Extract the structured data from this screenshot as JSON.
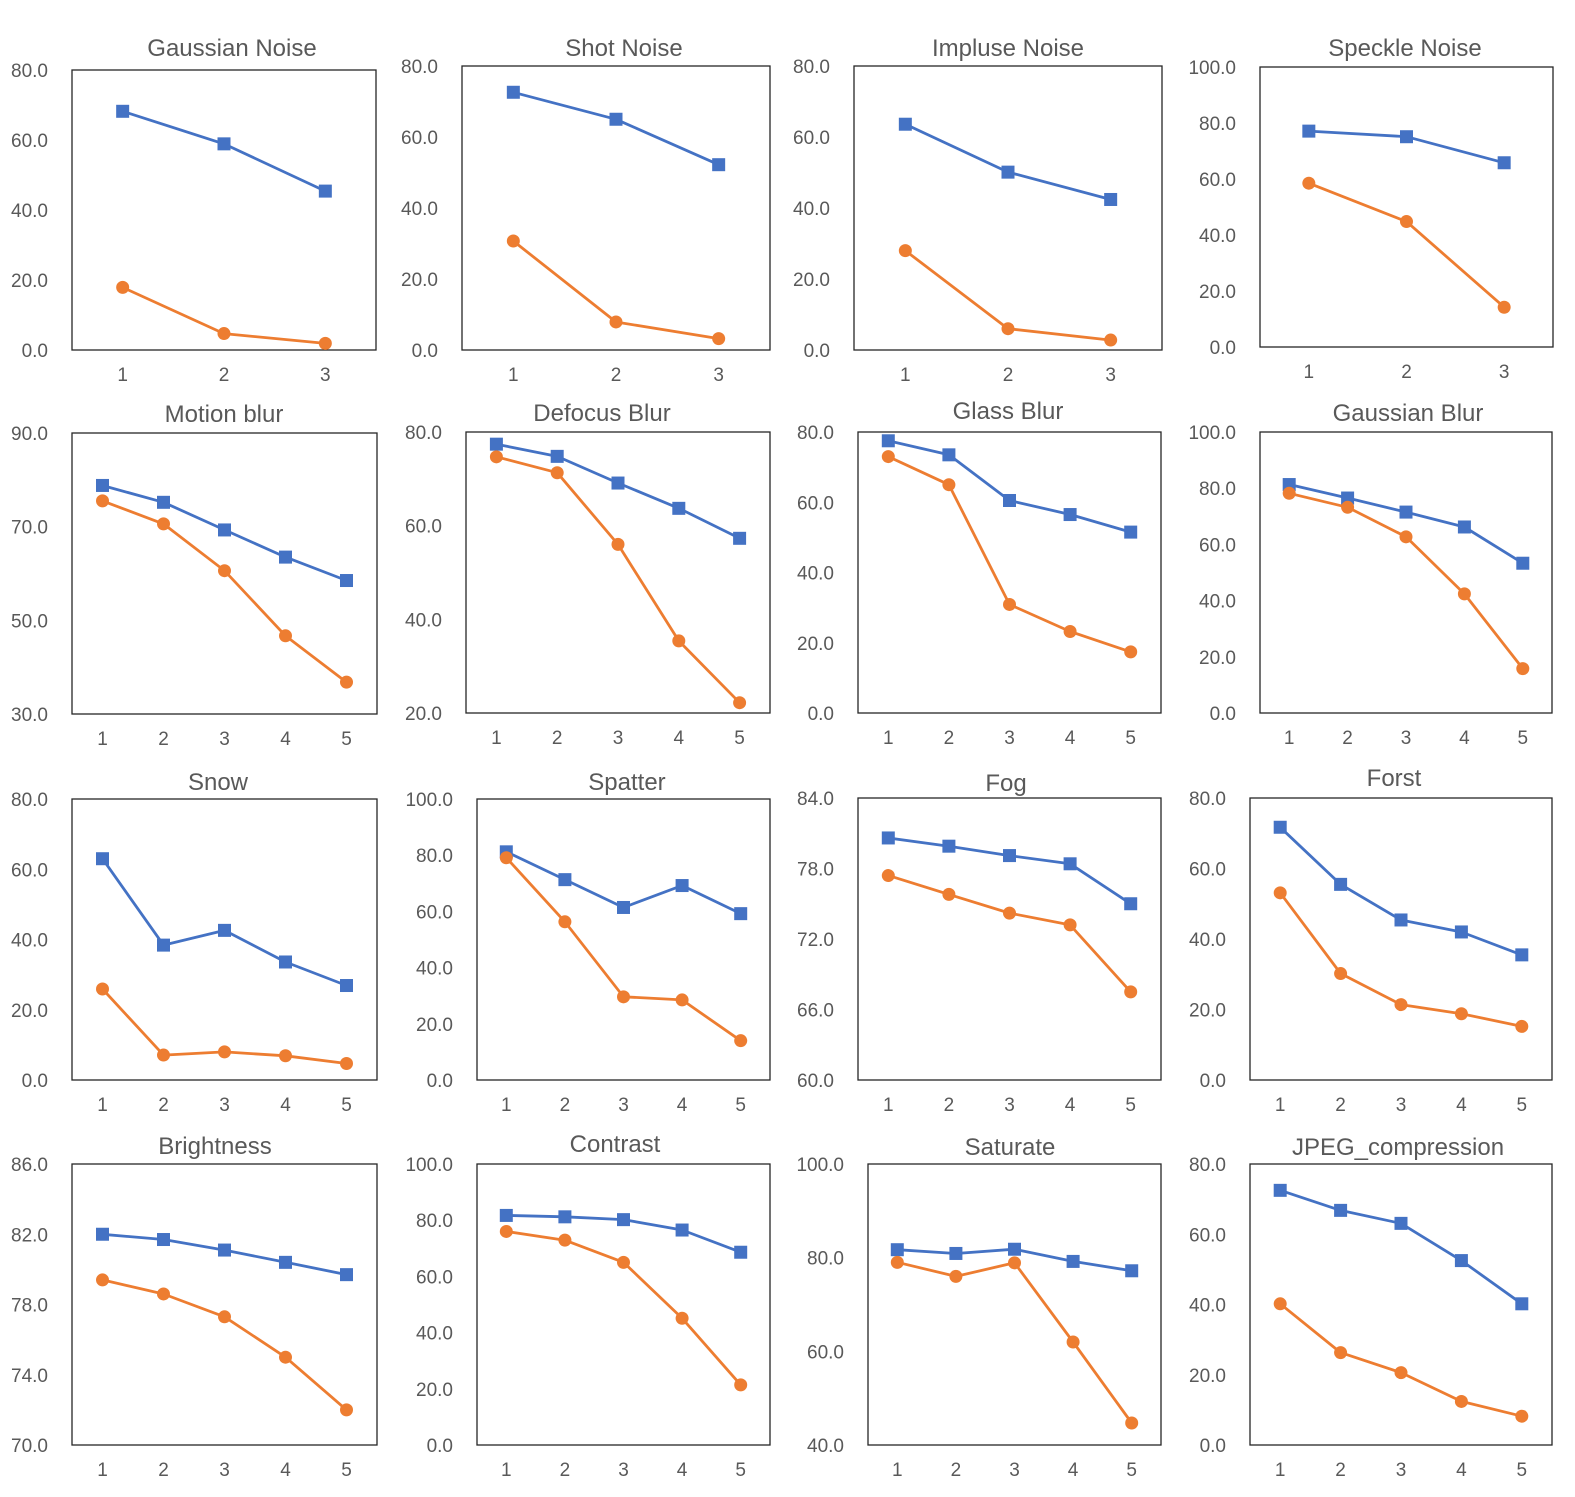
{
  "colors": {
    "blue_series": "#4472C4",
    "orange_series": "#ED7D31"
  },
  "chart_data": [
    {
      "type": "line",
      "title": "Gaussian Noise",
      "x": [
        1,
        2,
        3
      ],
      "ylim": [
        0,
        80
      ],
      "yticks": [
        "0.0",
        "20.0",
        "40.0",
        "60.0",
        "80.0"
      ],
      "series": [
        {
          "name": "blue-square",
          "values": [
            68.2,
            58.9,
            45.4
          ]
        },
        {
          "name": "orange-circle",
          "values": [
            17.9,
            4.7,
            1.9
          ]
        }
      ]
    },
    {
      "type": "line",
      "title": "Shot Noise",
      "x": [
        1,
        2,
        3
      ],
      "ylim": [
        0,
        80
      ],
      "yticks": [
        "0.0",
        "20.0",
        "40.0",
        "60.0",
        "80.0"
      ],
      "series": [
        {
          "name": "blue-square",
          "values": [
            72.6,
            65.0,
            52.2
          ]
        },
        {
          "name": "orange-circle",
          "values": [
            30.7,
            7.9,
            3.2
          ]
        }
      ]
    },
    {
      "type": "line",
      "title": "Impluse Noise",
      "x": [
        1,
        2,
        3
      ],
      "ylim": [
        0,
        80
      ],
      "yticks": [
        "0.0",
        "20.0",
        "40.0",
        "60.0",
        "80.0"
      ],
      "series": [
        {
          "name": "blue-square",
          "values": [
            63.6,
            50.1,
            42.4
          ]
        },
        {
          "name": "orange-circle",
          "values": [
            28.0,
            6.0,
            2.8
          ]
        }
      ]
    },
    {
      "type": "line",
      "title": "Speckle Noise",
      "x": [
        1,
        2,
        3
      ],
      "ylim": [
        0,
        100
      ],
      "yticks": [
        "0.0",
        "20.0",
        "40.0",
        "60.0",
        "80.0",
        "100.0"
      ],
      "series": [
        {
          "name": "blue-square",
          "values": [
            77.1,
            75.1,
            65.8
          ]
        },
        {
          "name": "orange-circle",
          "values": [
            58.5,
            44.8,
            14.2
          ]
        }
      ]
    },
    {
      "type": "line",
      "title": "Motion blur",
      "x": [
        1,
        2,
        3,
        4,
        5
      ],
      "ylim": [
        30,
        90
      ],
      "yticks": [
        "30.0",
        "50.0",
        "70.0",
        "90.0"
      ],
      "series": [
        {
          "name": "blue-square",
          "values": [
            78.8,
            75.2,
            69.3,
            63.5,
            58.5
          ]
        },
        {
          "name": "orange-circle",
          "values": [
            75.5,
            70.6,
            60.6,
            46.7,
            36.8
          ]
        }
      ]
    },
    {
      "type": "line",
      "title": "Defocus Blur",
      "x": [
        1,
        2,
        3,
        4,
        5
      ],
      "ylim": [
        20,
        80
      ],
      "yticks": [
        "20.0",
        "40.0",
        "60.0",
        "80.0"
      ],
      "series": [
        {
          "name": "blue-square",
          "values": [
            77.4,
            74.8,
            69.1,
            63.7,
            57.3
          ]
        },
        {
          "name": "orange-circle",
          "values": [
            74.7,
            71.3,
            56.0,
            35.4,
            22.2
          ]
        }
      ]
    },
    {
      "type": "line",
      "title": "Glass Blur",
      "x": [
        1,
        2,
        3,
        4,
        5
      ],
      "ylim": [
        0,
        80
      ],
      "yticks": [
        "0.0",
        "20.0",
        "40.0",
        "60.0",
        "80.0"
      ],
      "series": [
        {
          "name": "blue-square",
          "values": [
            77.5,
            73.5,
            60.5,
            56.5,
            51.5
          ]
        },
        {
          "name": "orange-circle",
          "values": [
            73.0,
            65.0,
            30.9,
            23.2,
            17.4
          ]
        }
      ]
    },
    {
      "type": "line",
      "title": "Gaussian Blur",
      "x": [
        1,
        2,
        3,
        4,
        5
      ],
      "ylim": [
        0,
        100
      ],
      "yticks": [
        "0.0",
        "20.0",
        "40.0",
        "60.0",
        "80.0",
        "100.0"
      ],
      "series": [
        {
          "name": "blue-square",
          "values": [
            81.3,
            76.5,
            71.5,
            66.2,
            53.3
          ]
        },
        {
          "name": "orange-circle",
          "values": [
            78.2,
            73.2,
            62.7,
            42.4,
            15.8
          ]
        }
      ]
    },
    {
      "type": "line",
      "title": "Snow",
      "x": [
        1,
        2,
        3,
        4,
        5
      ],
      "ylim": [
        0,
        80
      ],
      "yticks": [
        "0.0",
        "20.0",
        "40.0",
        "60.0",
        "80.0"
      ],
      "series": [
        {
          "name": "blue-square",
          "values": [
            63.0,
            38.4,
            42.6,
            33.6,
            26.9
          ]
        },
        {
          "name": "orange-circle",
          "values": [
            25.9,
            7.1,
            8.0,
            6.9,
            4.7
          ]
        }
      ]
    },
    {
      "type": "line",
      "title": "Spatter",
      "x": [
        1,
        2,
        3,
        4,
        5
      ],
      "ylim": [
        0,
        100
      ],
      "yticks": [
        "0.0",
        "20.0",
        "40.0",
        "60.0",
        "80.0",
        "100.0"
      ],
      "series": [
        {
          "name": "blue-square",
          "values": [
            81.2,
            71.3,
            61.4,
            69.2,
            59.2
          ]
        },
        {
          "name": "orange-circle",
          "values": [
            79.1,
            56.3,
            29.6,
            28.5,
            14.0
          ]
        }
      ]
    },
    {
      "type": "line",
      "title": "Fog",
      "x": [
        1,
        2,
        3,
        4,
        5
      ],
      "ylim": [
        60,
        84
      ],
      "yticks": [
        "60.0",
        "66.0",
        "72.0",
        "78.0",
        "84.0"
      ],
      "series": [
        {
          "name": "blue-square",
          "values": [
            80.6,
            79.9,
            79.1,
            78.4,
            75.0
          ]
        },
        {
          "name": "orange-circle",
          "values": [
            77.4,
            75.8,
            74.2,
            73.2,
            67.5
          ]
        }
      ]
    },
    {
      "type": "line",
      "title": "Forst",
      "x": [
        1,
        2,
        3,
        4,
        5
      ],
      "ylim": [
        0,
        80
      ],
      "yticks": [
        "0.0",
        "20.0",
        "40.0",
        "60.0",
        "80.0"
      ],
      "series": [
        {
          "name": "blue-square",
          "values": [
            71.7,
            55.5,
            45.4,
            42.0,
            35.5
          ]
        },
        {
          "name": "orange-circle",
          "values": [
            53.1,
            30.2,
            21.4,
            18.8,
            15.2
          ]
        }
      ]
    },
    {
      "type": "line",
      "title": "Brightness",
      "x": [
        1,
        2,
        3,
        4,
        5
      ],
      "ylim": [
        70,
        86
      ],
      "yticks": [
        "70.0",
        "74.0",
        "78.0",
        "82.0",
        "86.0"
      ],
      "series": [
        {
          "name": "blue-square",
          "values": [
            82.0,
            81.7,
            81.1,
            80.4,
            79.7
          ]
        },
        {
          "name": "orange-circle",
          "values": [
            79.4,
            78.6,
            77.3,
            75.0,
            72.0
          ]
        }
      ]
    },
    {
      "type": "line",
      "title": "Contrast",
      "x": [
        1,
        2,
        3,
        4,
        5
      ],
      "ylim": [
        0,
        100
      ],
      "yticks": [
        "0.0",
        "20.0",
        "40.0",
        "60.0",
        "80.0",
        "100.0"
      ],
      "series": [
        {
          "name": "blue-square",
          "values": [
            81.7,
            81.2,
            80.2,
            76.5,
            68.6
          ]
        },
        {
          "name": "orange-circle",
          "values": [
            76.0,
            72.9,
            65.0,
            45.1,
            21.4
          ]
        }
      ]
    },
    {
      "type": "line",
      "title": "Saturate",
      "x": [
        1,
        2,
        3,
        4,
        5
      ],
      "ylim": [
        40,
        100
      ],
      "yticks": [
        "40.0",
        "60.0",
        "80.0",
        "100.0"
      ],
      "series": [
        {
          "name": "blue-square",
          "values": [
            81.7,
            80.9,
            81.8,
            79.2,
            77.2
          ]
        },
        {
          "name": "orange-circle",
          "values": [
            79.0,
            76.0,
            78.9,
            62.0,
            44.7
          ]
        }
      ]
    },
    {
      "type": "line",
      "title": "JPEG_compression",
      "x": [
        1,
        2,
        3,
        4,
        5
      ],
      "ylim": [
        0,
        80
      ],
      "yticks": [
        "0.0",
        "20.0",
        "40.0",
        "60.0",
        "80.0"
      ],
      "series": [
        {
          "name": "blue-square",
          "values": [
            72.5,
            66.8,
            63.1,
            52.5,
            40.2
          ]
        },
        {
          "name": "orange-circle",
          "values": [
            40.2,
            26.3,
            20.6,
            12.4,
            8.2
          ]
        }
      ]
    }
  ]
}
